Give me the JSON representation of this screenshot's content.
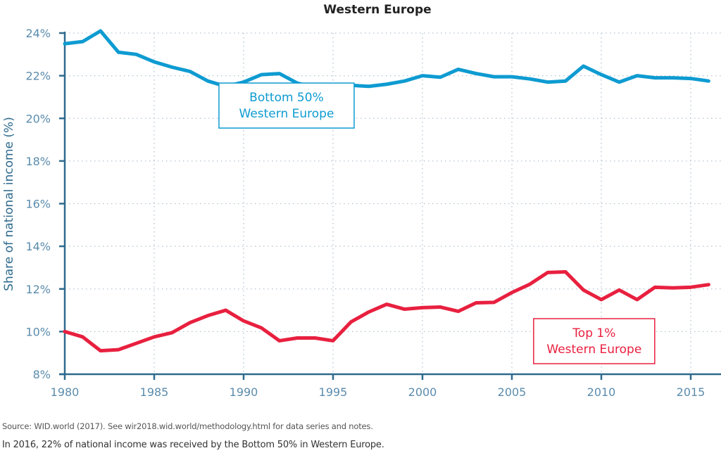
{
  "chart_data": {
    "type": "line",
    "title": "Western Europe",
    "xlabel": "",
    "ylabel": "Share of national income (%)",
    "xlim": [
      1980,
      2016.5
    ],
    "ylim": [
      8,
      24
    ],
    "grid": true,
    "x_ticks": [
      1980,
      1985,
      1990,
      1995,
      2000,
      2005,
      2010,
      2015
    ],
    "y_ticks": [
      8,
      10,
      12,
      14,
      16,
      18,
      20,
      22,
      24
    ],
    "y_tick_labels": [
      "8%",
      "10%",
      "12%",
      "14%",
      "16%",
      "18%",
      "20%",
      "22%",
      "24%"
    ],
    "x": [
      1980,
      1981,
      1982,
      1983,
      1984,
      1985,
      1986,
      1987,
      1988,
      1989,
      1990,
      1991,
      1992,
      1993,
      1994,
      1995,
      1996,
      1997,
      1998,
      1999,
      2000,
      2001,
      2002,
      2003,
      2004,
      2005,
      2006,
      2007,
      2008,
      2009,
      2010,
      2011,
      2012,
      2013,
      2014,
      2015,
      2016
    ],
    "series": [
      {
        "name": "Bottom 50% Western Europe",
        "color": "#0e9bd1",
        "values": [
          23.5,
          23.6,
          24.1,
          23.1,
          23.0,
          22.65,
          22.4,
          22.2,
          21.75,
          21.5,
          21.7,
          22.05,
          22.1,
          21.65,
          21.45,
          21.15,
          21.55,
          21.5,
          21.6,
          21.75,
          22.0,
          21.93,
          22.3,
          22.1,
          21.95,
          21.95,
          21.85,
          21.7,
          21.75,
          22.45,
          22.05,
          21.7,
          22.0,
          21.9,
          21.9,
          21.87,
          21.75
        ]
      },
      {
        "name": "Top 1% Western Europe",
        "color": "#e8203f",
        "values": [
          10.0,
          9.75,
          9.1,
          9.15,
          9.45,
          9.75,
          9.95,
          10.42,
          10.75,
          11.0,
          10.5,
          10.17,
          9.57,
          9.7,
          9.7,
          9.57,
          10.45,
          10.92,
          11.28,
          11.05,
          11.12,
          11.15,
          10.95,
          11.35,
          11.37,
          11.83,
          12.22,
          12.77,
          12.8,
          11.95,
          11.5,
          11.95,
          11.5,
          12.08,
          12.05,
          12.08,
          12.2
        ]
      }
    ],
    "annotations": [
      {
        "series": "Bottom 50% Western Europe",
        "lines": [
          "Bottom 50%",
          "Western Europe"
        ],
        "anchor_x": 1992.4,
        "anchor_y": 20.6,
        "color": "#0e9bd1"
      },
      {
        "series": "Top 1% Western Europe",
        "lines": [
          "Top 1%",
          "Western Europe"
        ],
        "anchor_x": 2009.6,
        "anchor_y": 9.55,
        "color": "#e8203f"
      }
    ]
  },
  "footer": {
    "source": "Source:  WID.world (2017). See wir2018.wid.world/methodology.html for data series and notes.",
    "note": "In 2016, 22% of national income was received by the Bottom 50% in Western Europe."
  }
}
